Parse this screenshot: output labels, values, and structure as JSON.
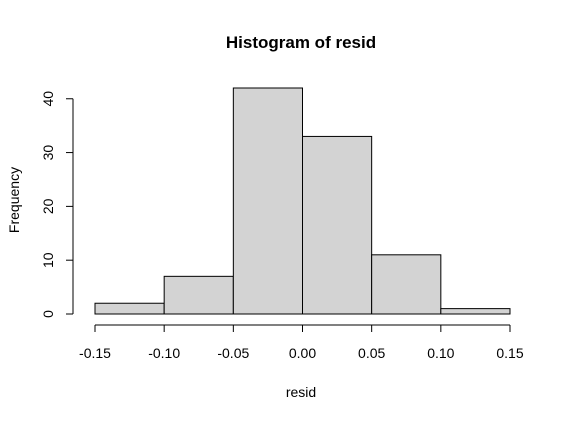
{
  "chart_data": {
    "type": "bar",
    "title": "Histogram of resid",
    "xlabel": "resid",
    "ylabel": "Frequency",
    "bins": [
      {
        "from": -0.15,
        "to": -0.1,
        "count": 2
      },
      {
        "from": -0.1,
        "to": -0.05,
        "count": 7
      },
      {
        "from": -0.05,
        "to": 0.0,
        "count": 42
      },
      {
        "from": 0.0,
        "to": 0.05,
        "count": 33
      },
      {
        "from": 0.05,
        "to": 0.1,
        "count": 11
      },
      {
        "from": 0.1,
        "to": 0.15,
        "count": 1
      }
    ],
    "xlim": [
      -0.15,
      0.15
    ],
    "ylim": [
      0,
      42
    ],
    "x_ticks": [
      -0.15,
      -0.1,
      -0.05,
      0.0,
      0.05,
      0.1,
      0.15
    ],
    "x_tick_labels": [
      "-0.15",
      "-0.10",
      "-0.05",
      "0.00",
      "0.05",
      "0.10",
      "0.15"
    ],
    "y_ticks": [
      0,
      10,
      20,
      30,
      40
    ],
    "y_tick_labels": [
      "0",
      "10",
      "20",
      "30",
      "40"
    ],
    "grid": false,
    "bar_color": "#d3d3d3",
    "edge_color": "#000000"
  }
}
